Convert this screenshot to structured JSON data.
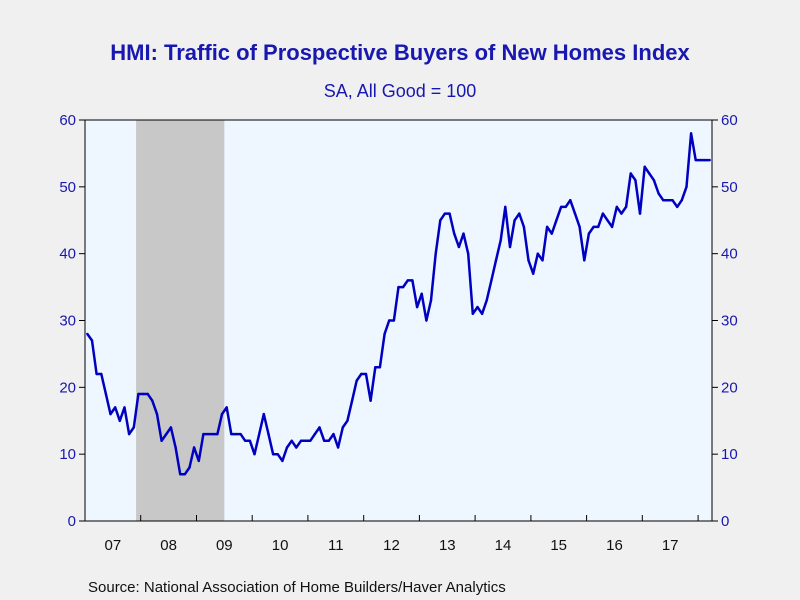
{
  "chart_data": {
    "type": "line",
    "title": "HMI: Traffic of Prospective Buyers of New Homes Index",
    "subtitle": "SA, All Good = 100",
    "source": "Source:  National Association of Home Builders/Haver Analytics",
    "x_start": "2007-01",
    "x_end": "2018-03",
    "ylim": [
      0,
      60
    ],
    "yticks": [
      0,
      10,
      20,
      30,
      40,
      50,
      60
    ],
    "xtick_labels": [
      "07",
      "08",
      "09",
      "10",
      "11",
      "12",
      "13",
      "14",
      "15",
      "16",
      "17"
    ],
    "recession": {
      "start": "2007-12",
      "end": "2009-06"
    },
    "colors": {
      "line": "#0000c0",
      "plot_bg": "#eef6ff",
      "recession": "#c8c8c8",
      "text": "#1818b0"
    },
    "series": [
      {
        "name": "",
        "dates": [
          "2007-01",
          "2007-02",
          "2007-03",
          "2007-04",
          "2007-05",
          "2007-06",
          "2007-07",
          "2007-08",
          "2007-09",
          "2007-10",
          "2007-11",
          "2007-12",
          "2008-01",
          "2008-02",
          "2008-03",
          "2008-04",
          "2008-05",
          "2008-06",
          "2008-07",
          "2008-08",
          "2008-09",
          "2008-10",
          "2008-11",
          "2008-12",
          "2009-01",
          "2009-02",
          "2009-03",
          "2009-04",
          "2009-05",
          "2009-06",
          "2009-07",
          "2009-08",
          "2009-09",
          "2009-10",
          "2009-11",
          "2009-12",
          "2010-01",
          "2010-02",
          "2010-03",
          "2010-04",
          "2010-05",
          "2010-06",
          "2010-07",
          "2010-08",
          "2010-09",
          "2010-10",
          "2010-11",
          "2010-12",
          "2011-01",
          "2011-02",
          "2011-03",
          "2011-04",
          "2011-05",
          "2011-06",
          "2011-07",
          "2011-08",
          "2011-09",
          "2011-10",
          "2011-11",
          "2011-12",
          "2012-01",
          "2012-02",
          "2012-03",
          "2012-04",
          "2012-05",
          "2012-06",
          "2012-07",
          "2012-08",
          "2012-09",
          "2012-10",
          "2012-11",
          "2012-12",
          "2013-01",
          "2013-02",
          "2013-03",
          "2013-04",
          "2013-05",
          "2013-06",
          "2013-07",
          "2013-08",
          "2013-09",
          "2013-10",
          "2013-11",
          "2013-12",
          "2014-01",
          "2014-02",
          "2014-03",
          "2014-04",
          "2014-05",
          "2014-06",
          "2014-07",
          "2014-08",
          "2014-09",
          "2014-10",
          "2014-11",
          "2014-12",
          "2015-01",
          "2015-02",
          "2015-03",
          "2015-04",
          "2015-05",
          "2015-06",
          "2015-07",
          "2015-08",
          "2015-09",
          "2015-10",
          "2015-11",
          "2015-12",
          "2016-01",
          "2016-02",
          "2016-03",
          "2016-04",
          "2016-05",
          "2016-06",
          "2016-07",
          "2016-08",
          "2016-09",
          "2016-10",
          "2016-11",
          "2016-12",
          "2017-01",
          "2017-02",
          "2017-03",
          "2017-04",
          "2017-05",
          "2017-06",
          "2017-07",
          "2017-08",
          "2017-09",
          "2017-10",
          "2017-11",
          "2017-12",
          "2018-01",
          "2018-02",
          "2018-03"
        ],
        "values": [
          28,
          27,
          22,
          22,
          19,
          16,
          17,
          15,
          17,
          13,
          14,
          19,
          19,
          19,
          18,
          16,
          12,
          13,
          14,
          11,
          7,
          7,
          8,
          11,
          9,
          13,
          13,
          13,
          13,
          16,
          17,
          13,
          13,
          13,
          12,
          12,
          10,
          13,
          16,
          13,
          10,
          10,
          9,
          11,
          12,
          11,
          12,
          12,
          12,
          13,
          14,
          12,
          12,
          13,
          11,
          14,
          15,
          18,
          21,
          22,
          22,
          18,
          23,
          23,
          28,
          30,
          30,
          35,
          35,
          36,
          36,
          32,
          34,
          30,
          33,
          40,
          45,
          46,
          46,
          43,
          41,
          43,
          40,
          31,
          32,
          31,
          33,
          36,
          39,
          42,
          47,
          41,
          45,
          46,
          44,
          39,
          37,
          40,
          39,
          44,
          43,
          45,
          47,
          47,
          48,
          46,
          44,
          39,
          43,
          44,
          44,
          46,
          45,
          44,
          47,
          46,
          47,
          52,
          51,
          46,
          53,
          52,
          51,
          49,
          48,
          48,
          48,
          47,
          48,
          50,
          58,
          54,
          54,
          54,
          54
        ]
      }
    ]
  }
}
